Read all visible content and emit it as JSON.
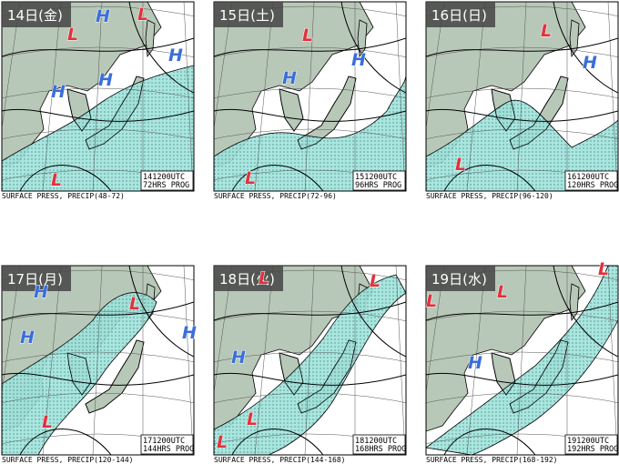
{
  "panels": [
    {
      "day_label": "14日(金)",
      "valid_time": "141200UTC",
      "forecast": "72HRS PROG",
      "caption": "SURFACE PRESS, PRECIP(48-72)",
      "centers": [
        "H",
        "H",
        "H",
        "H",
        "L",
        "L",
        "L"
      ]
    },
    {
      "day_label": "15日(土)",
      "valid_time": "151200UTC",
      "forecast": "96HRS PROG",
      "caption": "SURFACE PRESS, PRECIP(72-96)",
      "centers": [
        "L",
        "L",
        "H",
        "H"
      ]
    },
    {
      "day_label": "16日(日)",
      "valid_time": "161200UTC",
      "forecast": "120HRS PROG",
      "caption": "SURFACE PRESS, PRECIP(96-120)",
      "centers": [
        "L",
        "L",
        "H"
      ]
    },
    {
      "day_label": "17日(月)",
      "valid_time": "171200UTC",
      "forecast": "144HRS PROG",
      "caption": "SURFACE PRESS, PRECIP(120-144)",
      "centers": [
        "H",
        "H",
        "H",
        "L",
        "L"
      ]
    },
    {
      "day_label": "18日(火)",
      "valid_time": "181200UTC",
      "forecast": "168HRS PROG",
      "caption": "SURFACE PRESS, PRECIP(144-168)",
      "centers": [
        "L",
        "L",
        "L",
        "L",
        "H"
      ]
    },
    {
      "day_label": "19日(水)",
      "valid_time": "191200UTC",
      "forecast": "192HRS PROG",
      "caption": "SURFACE PRESS, PRECIP(168-192)",
      "centers": [
        "L",
        "L",
        "L",
        "H"
      ]
    }
  ]
}
